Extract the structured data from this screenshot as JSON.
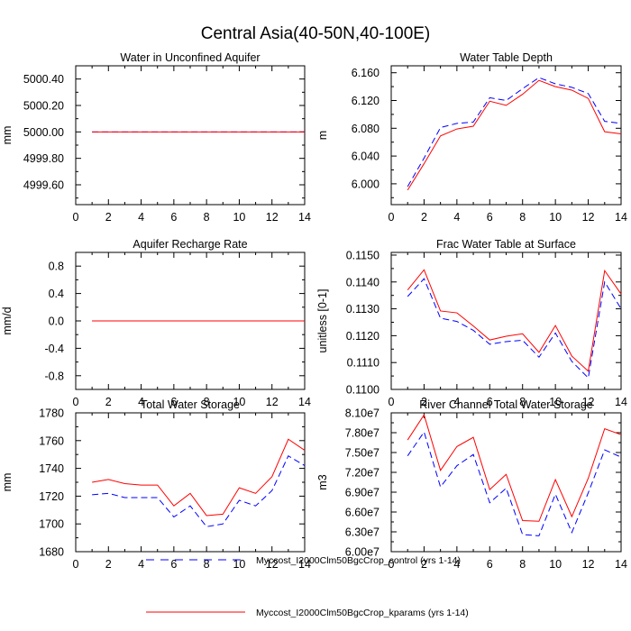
{
  "figure_title": "Central Asia(40-50N,40-100E)",
  "colors": {
    "control": "#0000ff",
    "kparams": "#ff0000",
    "axes": "#000000"
  },
  "legend": [
    {
      "label": "Myccost_I2000Clm50BgcCrop_control (yrs 1-14)",
      "color": "#0000ff",
      "dash": "dashed"
    },
    {
      "label": "Myccost_I2000Clm50BgcCrop_kparams (yrs 1-14)",
      "color": "#ff0000",
      "dash": "solid"
    }
  ],
  "chart_data": [
    {
      "type": "line",
      "title": "Water in Unconfined Aquifer",
      "ylabel": "mm",
      "xlim": [
        0,
        14
      ],
      "ylim": [
        4999.45,
        5000.5
      ],
      "xticks": [
        "0",
        "2",
        "4",
        "6",
        "8",
        "10",
        "12",
        "14"
      ],
      "yticks": [
        {
          "value": 4999.6,
          "label": "4999.60"
        },
        {
          "value": 4999.8,
          "label": "4999.80"
        },
        {
          "value": 5000.0,
          "label": "5000.00"
        },
        {
          "value": 5000.2,
          "label": "5000.20"
        },
        {
          "value": 5000.4,
          "label": "5000.40"
        }
      ],
      "x": [
        1,
        2,
        3,
        4,
        5,
        6,
        7,
        8,
        9,
        10,
        11,
        12,
        13,
        14
      ],
      "series": [
        {
          "name": "control",
          "values": [
            5000,
            5000,
            5000,
            5000,
            5000,
            5000,
            5000,
            5000,
            5000,
            5000,
            5000,
            5000,
            5000,
            5000
          ]
        },
        {
          "name": "kparams",
          "values": [
            5000,
            5000,
            5000,
            5000,
            5000,
            5000,
            5000,
            5000,
            5000,
            5000,
            5000,
            5000,
            5000,
            5000
          ]
        }
      ]
    },
    {
      "type": "line",
      "title": "Water Table Depth",
      "ylabel": "m",
      "xlim": [
        0,
        14
      ],
      "ylim": [
        5.97,
        6.17
      ],
      "xticks": [
        "0",
        "2",
        "4",
        "6",
        "8",
        "10",
        "12",
        "14"
      ],
      "yticks": [
        {
          "value": 6.0,
          "label": "6.000"
        },
        {
          "value": 6.04,
          "label": "6.040"
        },
        {
          "value": 6.08,
          "label": "6.080"
        },
        {
          "value": 6.12,
          "label": "6.120"
        },
        {
          "value": 6.16,
          "label": "6.160"
        }
      ],
      "x": [
        1,
        2,
        3,
        4,
        5,
        6,
        7,
        8,
        9,
        10,
        11,
        12,
        13,
        14
      ],
      "series": [
        {
          "name": "control",
          "values": [
            5.996,
            6.037,
            6.081,
            6.087,
            6.089,
            6.124,
            6.12,
            6.137,
            6.153,
            6.144,
            6.139,
            6.13,
            6.09,
            6.087
          ]
        },
        {
          "name": "kparams",
          "values": [
            5.991,
            6.029,
            6.069,
            6.079,
            6.083,
            6.119,
            6.113,
            6.129,
            6.149,
            6.14,
            6.135,
            6.123,
            6.075,
            6.072
          ]
        }
      ]
    },
    {
      "type": "line",
      "title": "Aquifer Recharge Rate",
      "ylabel": "mm/d",
      "xlim": [
        0,
        14
      ],
      "ylim": [
        -1.0,
        1.0
      ],
      "xticks": [
        "0",
        "2",
        "4",
        "6",
        "8",
        "10",
        "12",
        "14"
      ],
      "yticks": [
        {
          "value": -0.8,
          "label": "-0.8"
        },
        {
          "value": -0.4,
          "label": "-0.4"
        },
        {
          "value": 0.0,
          "label": "0.0"
        },
        {
          "value": 0.4,
          "label": "0.4"
        },
        {
          "value": 0.8,
          "label": "0.8"
        }
      ],
      "x": [
        1,
        2,
        3,
        4,
        5,
        6,
        7,
        8,
        9,
        10,
        11,
        12,
        13,
        14
      ],
      "series": [
        {
          "name": "control",
          "values": [
            0,
            0,
            0,
            0,
            0,
            0,
            0,
            0,
            0,
            0,
            0,
            0,
            0,
            0
          ]
        },
        {
          "name": "kparams",
          "values": [
            0,
            0,
            0,
            0,
            0,
            0,
            0,
            0,
            0,
            0,
            0,
            0,
            0,
            0
          ]
        }
      ]
    },
    {
      "type": "line",
      "title": "Frac Water Table at Surface",
      "ylabel": "unitless [0-1]",
      "xlim": [
        0,
        14
      ],
      "ylim": [
        0.11,
        0.1151
      ],
      "xticks": [
        "0",
        "2",
        "4",
        "6",
        "8",
        "10",
        "12",
        "14"
      ],
      "yticks": [
        {
          "value": 0.11,
          "label": "0.1100"
        },
        {
          "value": 0.111,
          "label": "0.1110"
        },
        {
          "value": 0.112,
          "label": "0.1120"
        },
        {
          "value": 0.113,
          "label": "0.1130"
        },
        {
          "value": 0.114,
          "label": "0.1140"
        },
        {
          "value": 0.115,
          "label": "0.1150"
        }
      ],
      "x": [
        1,
        2,
        3,
        4,
        5,
        6,
        7,
        8,
        9,
        10,
        11,
        12,
        13,
        14
      ],
      "series": [
        {
          "name": "control",
          "values": [
            0.11346,
            0.11412,
            0.11265,
            0.11253,
            0.1122,
            0.11168,
            0.11178,
            0.11183,
            0.1112,
            0.1121,
            0.11104,
            0.11043,
            0.114,
            0.113
          ]
        },
        {
          "name": "kparams",
          "values": [
            0.1137,
            0.11445,
            0.11292,
            0.11285,
            0.11236,
            0.11184,
            0.11198,
            0.11207,
            0.11138,
            0.11238,
            0.11124,
            0.11068,
            0.11442,
            0.11355
          ]
        }
      ]
    },
    {
      "type": "line",
      "title": "Total Water Storage",
      "ylabel": "mm",
      "xlim": [
        0,
        14
      ],
      "ylim": [
        1680,
        1780
      ],
      "xticks": [
        "0",
        "2",
        "4",
        "6",
        "8",
        "10",
        "12",
        "14"
      ],
      "yticks": [
        {
          "value": 1680,
          "label": "1680"
        },
        {
          "value": 1700,
          "label": "1700"
        },
        {
          "value": 1720,
          "label": "1720"
        },
        {
          "value": 1740,
          "label": "1740"
        },
        {
          "value": 1760,
          "label": "1760"
        },
        {
          "value": 1780,
          "label": "1780"
        }
      ],
      "x": [
        1,
        2,
        3,
        4,
        5,
        6,
        7,
        8,
        9,
        10,
        11,
        12,
        13,
        14
      ],
      "series": [
        {
          "name": "control",
          "values": [
            1721,
            1722,
            1719,
            1719,
            1719,
            1705,
            1713,
            1698,
            1700,
            1717,
            1713,
            1724,
            1749,
            1742
          ]
        },
        {
          "name": "kparams",
          "values": [
            1730,
            1732,
            1729,
            1728,
            1728,
            1713,
            1722,
            1706,
            1707,
            1726,
            1722,
            1734,
            1761,
            1753
          ]
        }
      ]
    },
    {
      "type": "line",
      "title": "River Channel Total Water Storage",
      "ylabel": "m3",
      "xlim": [
        0,
        14
      ],
      "ylim": [
        60000000,
        81000000
      ],
      "xticks": [
        "0",
        "2",
        "4",
        "6",
        "8",
        "10",
        "12",
        "14"
      ],
      "yticks": [
        {
          "value": 60000000,
          "label": "6.00e7"
        },
        {
          "value": 63000000,
          "label": "6.30e7"
        },
        {
          "value": 66000000,
          "label": "6.60e7"
        },
        {
          "value": 69000000,
          "label": "6.90e7"
        },
        {
          "value": 72000000,
          "label": "7.20e7"
        },
        {
          "value": 75000000,
          "label": "7.50e7"
        },
        {
          "value": 78000000,
          "label": "7.80e7"
        },
        {
          "value": 81000000,
          "label": "8.10e7"
        }
      ],
      "x": [
        1,
        2,
        3,
        4,
        5,
        6,
        7,
        8,
        9,
        10,
        11,
        12,
        13,
        14
      ],
      "series": [
        {
          "name": "control",
          "values": [
            74500000,
            78100000,
            69800000,
            73000000,
            74700000,
            67400000,
            69600000,
            62600000,
            62400000,
            68700000,
            62900000,
            68900000,
            75400000,
            74300000
          ]
        },
        {
          "name": "kparams",
          "values": [
            76900000,
            80700000,
            72300000,
            75900000,
            77300000,
            69400000,
            71700000,
            64700000,
            64600000,
            70900000,
            65300000,
            71100000,
            78600000,
            77700000
          ]
        }
      ]
    }
  ]
}
